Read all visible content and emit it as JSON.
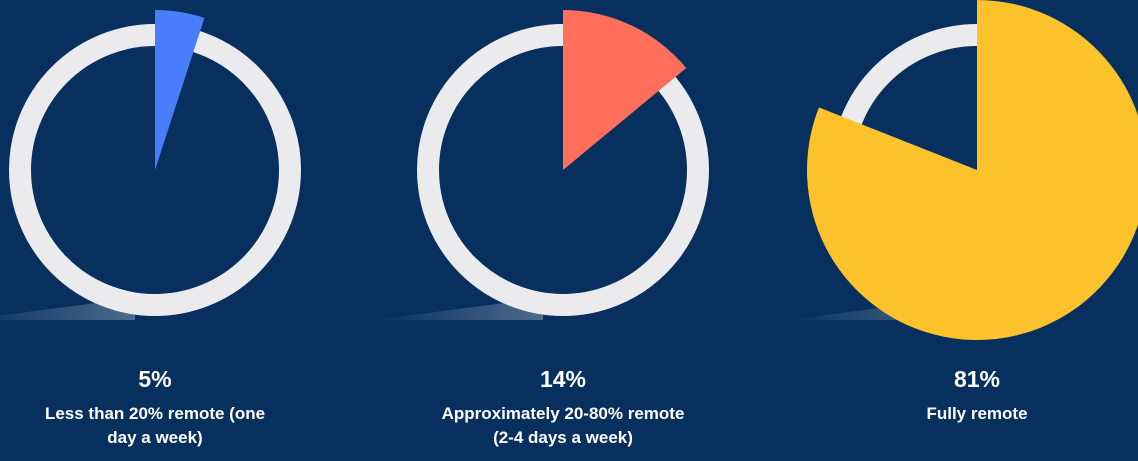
{
  "chart_data": [
    {
      "type": "pie",
      "categories": [
        "Less than 20% remote (one day a week)"
      ],
      "values": [
        5
      ],
      "value_labels": [
        "5%"
      ],
      "color": "#4a7dfc"
    },
    {
      "type": "pie",
      "categories": [
        "Approximately 20-80% remote (2-4 days a week)"
      ],
      "values": [
        14
      ],
      "value_labels": [
        "14%"
      ],
      "color": "#ff6f5b"
    },
    {
      "type": "pie",
      "categories": [
        "Fully remote"
      ],
      "values": [
        81
      ],
      "value_labels": [
        "81%"
      ],
      "color": "#fbc22b"
    }
  ]
}
